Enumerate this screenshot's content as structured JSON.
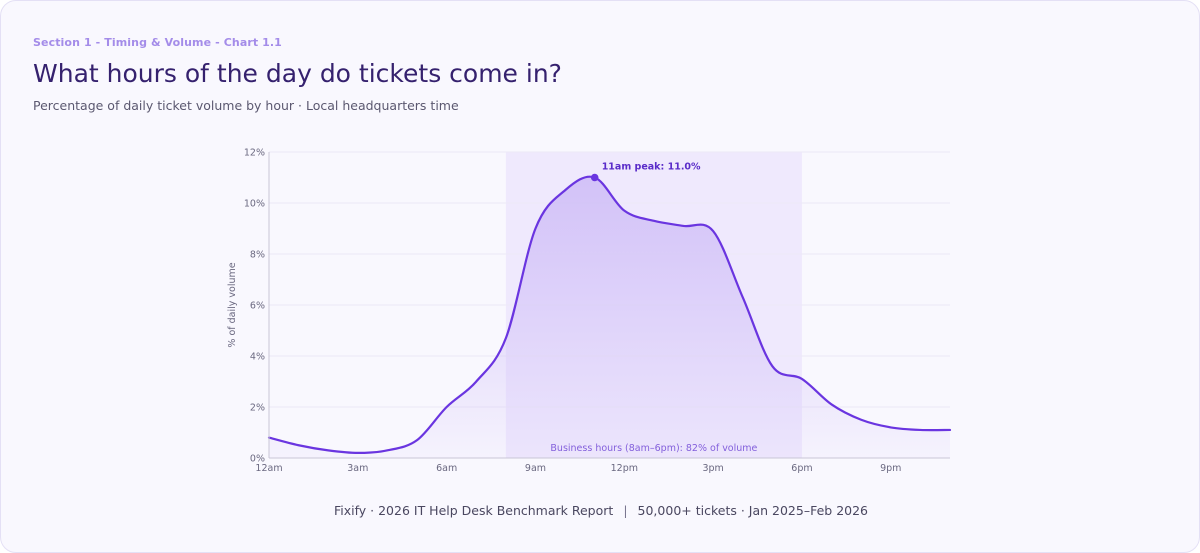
{
  "header": {
    "eyebrow": "Section 1 - Timing & Volume - Chart 1.1",
    "title": "What hours of the day do tickets come in?",
    "subtitle": "Percentage of daily ticket volume by hour · Local headquarters time"
  },
  "chart_data": {
    "type": "area",
    "ylabel": "% of daily volume",
    "ylim": [
      0,
      12
    ],
    "yticks": [
      0,
      2,
      4,
      6,
      8,
      10,
      12
    ],
    "ytick_labels": [
      "0%",
      "2%",
      "4%",
      "6%",
      "8%",
      "10%",
      "12%"
    ],
    "x_hours": [
      0,
      1,
      2,
      3,
      4,
      5,
      6,
      7,
      8,
      9,
      10,
      11,
      12,
      13,
      14,
      15,
      16,
      17,
      18,
      19,
      20,
      21,
      22,
      23
    ],
    "x_labels": [
      "12am",
      "3am",
      "6am",
      "9am",
      "12pm",
      "3pm",
      "6pm",
      "9pm"
    ],
    "x_label_hours": [
      0,
      3,
      6,
      9,
      12,
      15,
      18,
      21
    ],
    "values": [
      0.8,
      0.5,
      0.3,
      0.2,
      0.3,
      0.7,
      2.0,
      3.0,
      4.7,
      9.0,
      10.5,
      11.0,
      9.7,
      9.3,
      9.1,
      8.9,
      6.3,
      3.6,
      3.1,
      2.1,
      1.5,
      1.2,
      1.1,
      1.1
    ],
    "grid": "horizontal",
    "highlight_band": {
      "start_hour": 8,
      "end_hour": 18,
      "label": "Business hours (8am–6pm): 82% of volume"
    },
    "annotation": {
      "hour": 11,
      "value": 11.0,
      "label": "11am peak: 11.0%"
    },
    "colors": {
      "line": "#6a35e0",
      "fill_top": "#c9b5f6",
      "band": "#efe9fd",
      "grid": "#ece9f6",
      "axis": "#c9c6d6",
      "tick": "#6a6880"
    }
  },
  "footer": {
    "left": "Fixify · 2026 IT Help Desk Benchmark Report",
    "separator": "|",
    "right": "50,000+ tickets · Jan 2025–Feb 2026"
  }
}
